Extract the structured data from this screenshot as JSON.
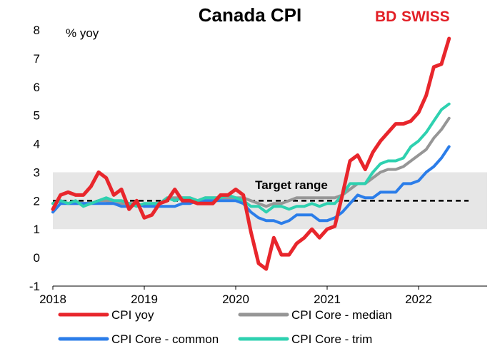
{
  "chart_data": {
    "type": "line",
    "title": "Canada CPI",
    "ylabel": "% yoy",
    "xlabel": "",
    "ylim": [
      -1,
      8
    ],
    "yticks": [
      -1,
      0,
      1,
      2,
      3,
      4,
      5,
      6,
      7,
      8
    ],
    "xlim": [
      2018,
      2022.75
    ],
    "xticks": [
      2018,
      2019,
      2020,
      2021,
      2022
    ],
    "target_band": [
      1,
      3
    ],
    "target_midpoint": 2,
    "annotation": "Target range",
    "legend_position": "bottom",
    "x_start": 2018,
    "x_step_months": 1,
    "series": [
      {
        "name": "CPI yoy",
        "color": "#e8262c",
        "values": [
          1.7,
          2.2,
          2.3,
          2.2,
          2.2,
          2.5,
          3.0,
          2.8,
          2.2,
          2.4,
          1.7,
          2.0,
          1.4,
          1.5,
          1.9,
          2.0,
          2.4,
          2.0,
          2.0,
          1.9,
          1.9,
          1.9,
          2.2,
          2.2,
          2.4,
          2.2,
          0.9,
          -0.2,
          -0.4,
          0.7,
          0.1,
          0.1,
          0.5,
          0.7,
          1.0,
          0.7,
          1.0,
          1.1,
          2.2,
          3.4,
          3.6,
          3.1,
          3.7,
          4.1,
          4.4,
          4.7,
          4.7,
          4.8,
          5.1,
          5.7,
          6.7,
          6.8,
          7.7
        ]
      },
      {
        "name": "CPI Core - median",
        "color": "#969696",
        "values": [
          1.9,
          2.0,
          1.9,
          1.9,
          1.9,
          1.9,
          2.0,
          2.0,
          1.9,
          1.9,
          1.9,
          1.9,
          1.8,
          1.9,
          1.9,
          2.1,
          2.1,
          2.1,
          2.1,
          2.0,
          2.1,
          2.1,
          2.1,
          2.1,
          2.1,
          2.1,
          2.0,
          1.9,
          1.8,
          1.9,
          1.9,
          2.0,
          2.1,
          2.1,
          2.1,
          2.1,
          2.1,
          2.1,
          2.2,
          2.4,
          2.6,
          2.6,
          2.8,
          3.0,
          3.1,
          3.1,
          3.2,
          3.4,
          3.6,
          3.8,
          4.2,
          4.5,
          4.9
        ]
      },
      {
        "name": "CPI Core - common",
        "color": "#2b7de9",
        "values": [
          1.6,
          1.9,
          1.9,
          1.9,
          1.9,
          1.9,
          1.9,
          1.9,
          1.9,
          1.8,
          1.8,
          1.9,
          1.8,
          1.8,
          1.8,
          1.8,
          1.8,
          1.9,
          1.9,
          2.0,
          2.0,
          2.0,
          2.0,
          2.0,
          2.0,
          1.9,
          1.6,
          1.4,
          1.3,
          1.3,
          1.2,
          1.3,
          1.5,
          1.5,
          1.5,
          1.3,
          1.3,
          1.4,
          1.6,
          1.9,
          2.2,
          2.1,
          2.1,
          2.3,
          2.3,
          2.3,
          2.6,
          2.6,
          2.7,
          3.0,
          3.2,
          3.5,
          3.9
        ]
      },
      {
        "name": "CPI Core - trim",
        "color": "#2ed1b0",
        "values": [
          1.9,
          2.0,
          1.9,
          2.0,
          1.8,
          1.9,
          2.0,
          2.1,
          2.0,
          2.0,
          1.9,
          1.8,
          1.9,
          1.9,
          1.9,
          2.1,
          2.0,
          2.1,
          2.1,
          2.0,
          2.1,
          2.1,
          2.1,
          2.2,
          2.1,
          2.0,
          1.8,
          1.8,
          1.6,
          1.8,
          1.8,
          1.7,
          1.8,
          1.8,
          1.9,
          1.8,
          1.9,
          1.9,
          2.2,
          2.6,
          2.6,
          2.6,
          3.0,
          3.3,
          3.4,
          3.4,
          3.5,
          3.9,
          4.1,
          4.4,
          4.8,
          5.2,
          5.4
        ]
      }
    ]
  },
  "brand": {
    "part1": "BD",
    "part2": "SWISS",
    "color": "#e21f26"
  },
  "colors": {
    "band": "#e6e6e6",
    "axis": "#000000",
    "target_line": "#000000"
  }
}
